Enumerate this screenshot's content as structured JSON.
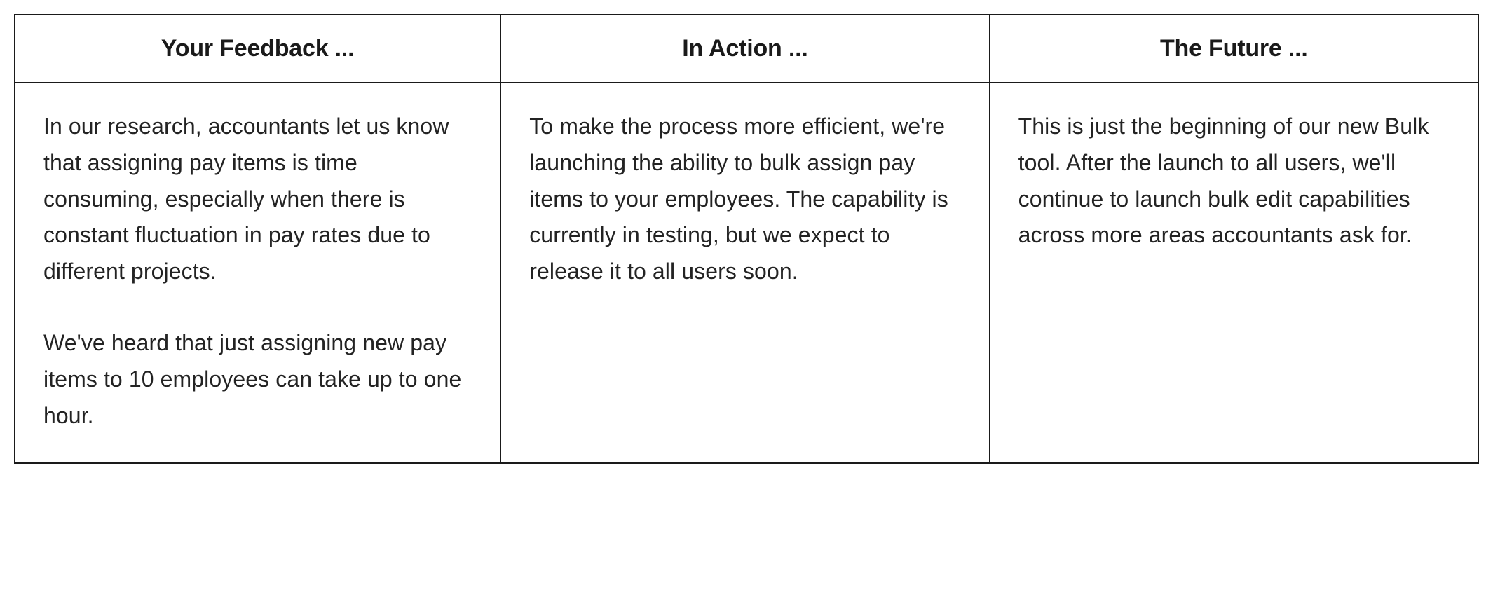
{
  "table": {
    "border_color": "#1a1a1a",
    "background_color": "#ffffff",
    "text_color": "#232323",
    "header_fontsize": 34,
    "body_fontsize": 32,
    "line_height": 1.62,
    "columns": [
      {
        "header": "Your Feedback ...",
        "width_pct": 33.2
      },
      {
        "header": "In Action ...",
        "width_pct": 33.4
      },
      {
        "header": "The Future ...",
        "width_pct": 33.4
      }
    ],
    "rows": [
      {
        "cells": [
          {
            "paragraphs": [
              "In our research, accountants let us know that assigning pay items is time consuming, especially when there is constant fluctuation in pay rates due to different projects.",
              "We've heard that just assigning new pay items to 10 employees can take up to one hour."
            ]
          },
          {
            "paragraphs": [
              "To make the process more efficient, we're launching the ability to bulk assign pay items to your employees. The capability is currently in testing, but we expect to release it to all users soon."
            ]
          },
          {
            "paragraphs": [
              "This is just the beginning of our new Bulk tool. After the launch to all users, we'll continue to launch bulk edit capabilities across more areas accountants ask for."
            ]
          }
        ]
      }
    ]
  }
}
